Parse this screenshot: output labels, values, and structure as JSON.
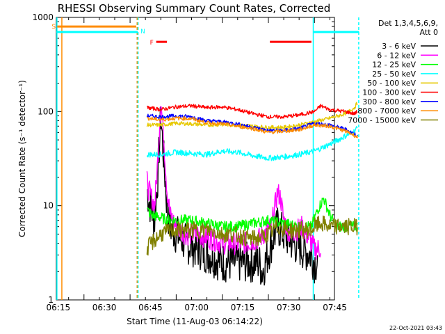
{
  "chart_data": {
    "type": "line",
    "title": "RHESSI Observing Summary Count Rates, Corrected",
    "xlabel": "Start Time (11-Aug-03 06:14:22)",
    "ylabel": "Corrected Count Rate (s⁻¹ detector⁻¹)",
    "yscale": "log",
    "ylim": [
      1,
      1000
    ],
    "xlim_minutes": [
      6.0,
      96.5
    ],
    "xticks": [
      {
        "label": "06:15",
        "t": 15
      },
      {
        "label": "06:30",
        "t": 30
      },
      {
        "label": "06:45",
        "t": 45
      },
      {
        "label": "07:00",
        "t": 60
      },
      {
        "label": "07:15",
        "t": 75
      },
      {
        "label": "07:30",
        "t": 90
      },
      {
        "label": "07:45",
        "t": 105
      }
    ],
    "yticks": [
      {
        "label": "1",
        "v": 1
      },
      {
        "label": "10",
        "v": 10
      },
      {
        "label": "100",
        "v": 100
      },
      {
        "label": "1000",
        "v": 1000
      }
    ],
    "legend": {
      "header_line1": "Det 1,3,4,5,6,9,",
      "header_line2": "Att 0",
      "placement": "outside-right"
    },
    "series": [
      {
        "name": "3 - 6 keV",
        "color": "#000000",
        "t": [
          35.5,
          36,
          37,
          38,
          39,
          40,
          41,
          42,
          43,
          45,
          48,
          52,
          56,
          60,
          64,
          68,
          72,
          73,
          74,
          76,
          78,
          80,
          83,
          86,
          89,
          90,
          91
        ],
        "values": [
          15,
          12,
          9,
          7,
          20,
          90,
          30,
          10,
          6,
          5,
          4,
          3.5,
          3,
          2.5,
          2.5,
          2.5,
          2.5,
          2,
          2.5,
          4,
          6,
          5,
          4,
          3.5,
          3,
          2.5,
          2.5
        ]
      },
      {
        "name": "6 - 12 keV",
        "color": "#ff00ff",
        "t": [
          35.5,
          36,
          37,
          38,
          39,
          40,
          41,
          42,
          43,
          45,
          48,
          52,
          56,
          60,
          64,
          68,
          72,
          76,
          78,
          79,
          80,
          82,
          86,
          89,
          90,
          91,
          92
        ],
        "values": [
          18,
          15,
          12,
          10,
          30,
          130,
          50,
          15,
          8,
          6,
          5,
          5,
          4.5,
          4,
          4,
          4,
          4.5,
          6,
          14,
          12,
          7,
          5,
          6,
          4,
          3.5,
          3.5,
          3.5
        ]
      },
      {
        "name": "12 - 25 keV",
        "color": "#00ff00",
        "t": [
          35.5,
          37,
          40,
          42,
          45,
          50,
          55,
          60,
          65,
          70,
          75,
          80,
          85,
          89,
          91,
          93,
          95,
          97,
          100,
          103,
          104
        ],
        "values": [
          9,
          8,
          7.5,
          7,
          7,
          7,
          6.5,
          6,
          6,
          6.5,
          7,
          6.5,
          6,
          6,
          9,
          12,
          8,
          6,
          6,
          6,
          6
        ]
      },
      {
        "name": "25 - 50 keV",
        "color": "#00ffff",
        "t": [
          35.5,
          40,
          45,
          50,
          55,
          60,
          65,
          70,
          75,
          80,
          85,
          90,
          95,
          100,
          103,
          104
        ],
        "values": [
          35,
          35,
          37,
          36,
          35,
          38,
          37,
          34,
          32,
          33,
          35,
          38,
          45,
          55,
          62,
          68
        ]
      },
      {
        "name": "50 - 100 keV",
        "color": "#e6c800",
        "t": [
          35.5,
          40,
          45,
          50,
          55,
          60,
          65,
          70,
          75,
          80,
          85,
          90,
          95,
          100,
          103,
          104
        ],
        "values": [
          72,
          72,
          75,
          74,
          72,
          73,
          72,
          70,
          68,
          68,
          72,
          78,
          85,
          95,
          110,
          125
        ]
      },
      {
        "name": "100 - 300 keV",
        "color": "#ff0000",
        "t": [
          35.5,
          40,
          45,
          50,
          55,
          60,
          65,
          70,
          75,
          80,
          85,
          90,
          92,
          95,
          100,
          103,
          104
        ],
        "values": [
          110,
          105,
          112,
          115,
          110,
          112,
          105,
          95,
          88,
          88,
          92,
          100,
          115,
          105,
          100,
          95,
          100
        ]
      },
      {
        "name": "300 - 800 keV",
        "color": "#0000ff",
        "t": [
          35.5,
          40,
          45,
          50,
          55,
          60,
          65,
          70,
          75,
          80,
          85,
          90,
          95,
          100,
          103,
          104
        ],
        "values": [
          90,
          88,
          90,
          88,
          80,
          78,
          74,
          68,
          63,
          63,
          66,
          75,
          72,
          65,
          58,
          55
        ]
      },
      {
        "name": "800 - 7000 keV",
        "color": "#ff8c00",
        "t": [
          35.5,
          40,
          45,
          50,
          55,
          60,
          65,
          70,
          75,
          80,
          85,
          90,
          95,
          100,
          103,
          104
        ],
        "values": [
          85,
          82,
          85,
          84,
          76,
          74,
          70,
          66,
          60,
          62,
          64,
          72,
          70,
          62,
          56,
          53
        ]
      },
      {
        "name": "7000 - 15000 keV",
        "color": "#808000",
        "t": [
          35.5,
          37,
          40,
          44,
          48,
          52,
          56,
          60,
          64,
          68,
          72,
          75,
          78,
          82,
          86,
          89,
          90,
          92,
          95,
          100,
          104
        ],
        "values": [
          3.5,
          4,
          5,
          5.5,
          5.5,
          5.5,
          5.5,
          5,
          5,
          4.5,
          4.5,
          5,
          6,
          5.5,
          5.5,
          5.5,
          6,
          6.5,
          6,
          6,
          6
        ]
      }
    ],
    "annotations": {
      "saa": {
        "label": "S",
        "color": "#ff8c00",
        "t_start": 6.3,
        "t_end": 32.0,
        "level": 800
      },
      "night": {
        "label": "N",
        "color": "#00ffff",
        "t_start": 6.0,
        "t_end": 32.5,
        "level": 700
      },
      "night2": {
        "color": "#00ffff",
        "t_start": 89.5,
        "t_end": 104.5,
        "level": 700
      },
      "flare": {
        "label": "F",
        "color": "#ff0000",
        "segments": [
          [
            38.5,
            42.0
          ],
          [
            75.5,
            89.0
          ]
        ],
        "level": 550
      },
      "vlines": [
        {
          "t": 6.2,
          "color": "#00ffff",
          "dashed": false
        },
        {
          "t": 7.8,
          "color": "#ff8c00",
          "dashed": false
        },
        {
          "t": 32.3,
          "color": "#ff8c00",
          "dashed": true
        },
        {
          "t": 32.6,
          "color": "#00ffff",
          "dashed": true
        },
        {
          "t": 89.6,
          "color": "#00ffff",
          "dashed": false
        },
        {
          "t": 104.4,
          "color": "#00ffff",
          "dashed": true
        }
      ]
    },
    "footer_date": "22-Oct-2021 03:43"
  }
}
